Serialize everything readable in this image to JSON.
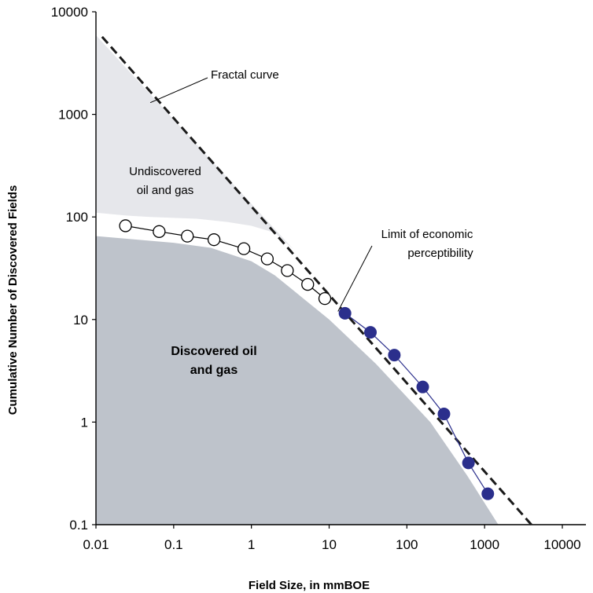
{
  "chart_data": {
    "type": "scatter",
    "title": "",
    "xlabel": "Field Size, in mmBOE",
    "ylabel": "Cumulative Number of Discovered Fields",
    "x_scale": "log",
    "y_scale": "log",
    "xlim": [
      0.01,
      10000
    ],
    "ylim": [
      0.1,
      10000
    ],
    "grid": false,
    "x_ticks": [
      "0.01",
      "0.1",
      "1",
      "10",
      "100",
      "1000",
      "10000"
    ],
    "y_ticks": [
      "0.1",
      "1",
      "10",
      "100",
      "1000",
      "10000"
    ],
    "series": [
      {
        "marker": "open-circle",
        "color": "#000000",
        "x": [
          0.024,
          0.065,
          0.15,
          0.33,
          0.8,
          1.6,
          2.9,
          5.3,
          8.8
        ],
        "y": [
          82,
          72,
          65,
          60,
          49,
          39,
          30,
          22,
          16
        ]
      },
      {
        "marker": "filled-circle",
        "color": "#2b2f8c",
        "x": [
          16,
          34,
          69,
          160,
          300,
          620,
          1100
        ],
        "y": [
          11.5,
          7.5,
          4.5,
          2.2,
          1.2,
          0.4,
          0.2
        ]
      }
    ],
    "fractal_line": {
      "style": "dashed",
      "color": "#1a1a1a",
      "x": [
        0.012,
        4000
      ],
      "y": [
        5700,
        0.1
      ]
    },
    "regions": [
      {
        "label": "Undiscovered oil and gas",
        "fill": "#e6e7eb",
        "boundary": [
          {
            "x": 0.01,
            "y": 5900
          },
          {
            "x": 0.01,
            "y": 110
          },
          {
            "x": 0.025,
            "y": 103
          },
          {
            "x": 0.05,
            "y": 100
          },
          {
            "x": 0.2,
            "y": 96
          },
          {
            "x": 0.5,
            "y": 89
          },
          {
            "x": 1,
            "y": 82
          },
          {
            "x": 2,
            "y": 70
          },
          {
            "x": 3.5,
            "y": 48
          }
        ]
      },
      {
        "label": "Discovered oil and gas",
        "fill": "#bec3cb",
        "boundary": [
          {
            "x": 0.01,
            "y": 0.1
          },
          {
            "x": 0.01,
            "y": 65
          },
          {
            "x": 0.1,
            "y": 56
          },
          {
            "x": 0.3,
            "y": 50
          },
          {
            "x": 1,
            "y": 37
          },
          {
            "x": 2,
            "y": 27
          },
          {
            "x": 10,
            "y": 10
          },
          {
            "x": 40,
            "y": 3.7
          },
          {
            "x": 200,
            "y": 1
          },
          {
            "x": 600,
            "y": 0.3
          },
          {
            "x": 1500,
            "y": 0.1
          }
        ]
      }
    ],
    "annotations": [
      {
        "text": "Fractal curve",
        "target": {
          "x": 0.05,
          "y": 1300
        }
      },
      {
        "text_lines": [
          "Undiscovered",
          "oil and gas"
        ]
      },
      {
        "text_lines": [
          "Limit of economic",
          "perceptibility"
        ],
        "target": {
          "x": 13,
          "y": 12
        }
      },
      {
        "text_lines": [
          "Discovered oil",
          "and gas"
        ]
      }
    ]
  }
}
